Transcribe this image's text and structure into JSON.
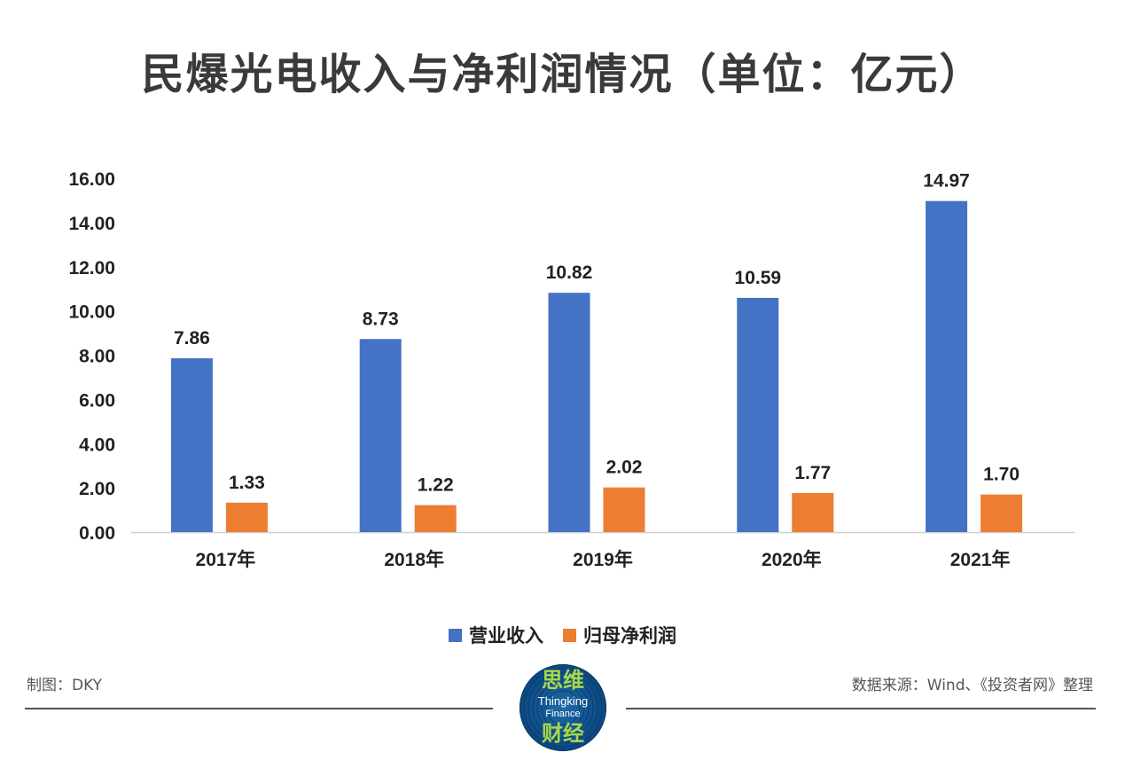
{
  "header": {
    "title": "民爆光电收入与净利润情况（单位：亿元）"
  },
  "chart_data": {
    "type": "bar",
    "categories": [
      "2017年",
      "2018年",
      "2019年",
      "2020年",
      "2021年"
    ],
    "series": [
      {
        "name": "营业收入",
        "color": "#4472C4",
        "values": [
          7.86,
          8.73,
          10.82,
          10.59,
          14.97
        ],
        "labels": [
          "7.86",
          "8.73",
          "10.82",
          "10.59",
          "14.97"
        ]
      },
      {
        "name": "归母净利润",
        "color": "#ED7D31",
        "values": [
          1.33,
          1.22,
          2.02,
          1.77,
          1.7
        ],
        "labels": [
          "1.33",
          "1.22",
          "2.02",
          "1.77",
          "1.70"
        ]
      }
    ],
    "yticks": [
      "0.00",
      "2.00",
      "4.00",
      "6.00",
      "8.00",
      "10.00",
      "12.00",
      "14.00",
      "16.00"
    ],
    "ylim": [
      0,
      16
    ],
    "grid": false,
    "legend_position": "bottom"
  },
  "footer": {
    "credit": "制图：DKY",
    "source": "数据来源：Wind、《投资者网》整理"
  },
  "logo": {
    "cn_top": "思维",
    "en_line1": "Thingking",
    "en_line2": "Finance",
    "cn_bottom": "财经"
  }
}
